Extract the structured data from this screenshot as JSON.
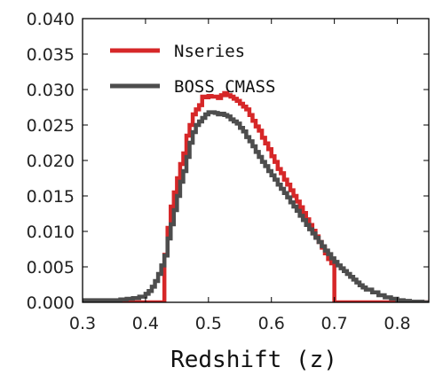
{
  "chart_data": {
    "type": "line",
    "title": "",
    "xlabel": "Redshift (z)",
    "ylabel": "",
    "xlim": [
      0.3,
      0.85
    ],
    "ylim": [
      0.0,
      0.04
    ],
    "xticks": [
      "0.3",
      "0.4",
      "0.5",
      "0.6",
      "0.7",
      "0.8"
    ],
    "yticks": [
      "0.000",
      "0.005",
      "0.010",
      "0.015",
      "0.020",
      "0.025",
      "0.030",
      "0.035",
      "0.040"
    ],
    "grid": false,
    "legend_position": "top-left",
    "series": [
      {
        "name": "Nseries",
        "color": "#d62728",
        "step": true,
        "x": [
          0.3,
          0.43,
          0.43,
          0.435,
          0.44,
          0.445,
          0.45,
          0.455,
          0.46,
          0.465,
          0.47,
          0.475,
          0.48,
          0.485,
          0.49,
          0.495,
          0.5,
          0.505,
          0.51,
          0.515,
          0.52,
          0.525,
          0.53,
          0.535,
          0.54,
          0.545,
          0.55,
          0.555,
          0.56,
          0.565,
          0.57,
          0.575,
          0.58,
          0.585,
          0.59,
          0.595,
          0.6,
          0.605,
          0.61,
          0.615,
          0.62,
          0.625,
          0.63,
          0.635,
          0.64,
          0.645,
          0.65,
          0.655,
          0.66,
          0.665,
          0.67,
          0.675,
          0.68,
          0.685,
          0.69,
          0.695,
          0.7,
          0.7,
          0.85
        ],
        "y": [
          0.0,
          0.0,
          0.0067,
          0.0105,
          0.0135,
          0.0155,
          0.0175,
          0.0195,
          0.021,
          0.0235,
          0.025,
          0.0265,
          0.0272,
          0.0278,
          0.029,
          0.0289,
          0.0291,
          0.029,
          0.029,
          0.0288,
          0.0292,
          0.0295,
          0.0292,
          0.029,
          0.0287,
          0.0284,
          0.028,
          0.0276,
          0.0272,
          0.0264,
          0.0256,
          0.0248,
          0.0242,
          0.0232,
          0.0224,
          0.0216,
          0.0206,
          0.0198,
          0.0188,
          0.0182,
          0.0173,
          0.0166,
          0.0158,
          0.015,
          0.0142,
          0.0134,
          0.0126,
          0.0117,
          0.0109,
          0.0101,
          0.0093,
          0.0085,
          0.0077,
          0.0069,
          0.0061,
          0.0055,
          0.005,
          0.0,
          0.0
        ]
      },
      {
        "name": "BOSS CMASS",
        "color": "#4d4d4d",
        "step": true,
        "x": [
          0.3,
          0.32,
          0.34,
          0.36,
          0.37,
          0.38,
          0.39,
          0.4,
          0.405,
          0.41,
          0.415,
          0.42,
          0.425,
          0.43,
          0.435,
          0.44,
          0.445,
          0.45,
          0.455,
          0.46,
          0.465,
          0.47,
          0.475,
          0.48,
          0.485,
          0.49,
          0.495,
          0.5,
          0.505,
          0.51,
          0.515,
          0.52,
          0.525,
          0.53,
          0.535,
          0.54,
          0.545,
          0.55,
          0.555,
          0.56,
          0.565,
          0.57,
          0.575,
          0.58,
          0.585,
          0.59,
          0.595,
          0.6,
          0.605,
          0.61,
          0.615,
          0.62,
          0.625,
          0.63,
          0.635,
          0.64,
          0.645,
          0.65,
          0.655,
          0.66,
          0.665,
          0.67,
          0.675,
          0.68,
          0.685,
          0.69,
          0.695,
          0.7,
          0.705,
          0.71,
          0.715,
          0.72,
          0.725,
          0.73,
          0.735,
          0.74,
          0.745,
          0.75,
          0.76,
          0.77,
          0.78,
          0.79,
          0.8,
          0.81,
          0.82,
          0.83,
          0.84,
          0.85
        ],
        "y": [
          0.0003,
          0.0003,
          0.0003,
          0.0004,
          0.0005,
          0.0006,
          0.0008,
          0.0012,
          0.0016,
          0.0022,
          0.003,
          0.004,
          0.0052,
          0.0066,
          0.009,
          0.011,
          0.013,
          0.015,
          0.017,
          0.0185,
          0.0205,
          0.0225,
          0.024,
          0.025,
          0.0255,
          0.026,
          0.0265,
          0.0268,
          0.0268,
          0.0267,
          0.0265,
          0.0266,
          0.0264,
          0.0262,
          0.0258,
          0.0255,
          0.0252,
          0.0246,
          0.0241,
          0.0233,
          0.0227,
          0.022,
          0.0212,
          0.0205,
          0.0198,
          0.0192,
          0.0185,
          0.0179,
          0.0173,
          0.0166,
          0.016,
          0.0154,
          0.0148,
          0.0141,
          0.0135,
          0.0129,
          0.0122,
          0.0116,
          0.0109,
          0.0103,
          0.0097,
          0.0091,
          0.0085,
          0.0079,
          0.0073,
          0.0068,
          0.0062,
          0.0057,
          0.0052,
          0.0048,
          0.0044,
          0.004,
          0.0036,
          0.0032,
          0.0028,
          0.0024,
          0.0021,
          0.0018,
          0.0014,
          0.001,
          0.0007,
          0.0005,
          0.0003,
          0.0002,
          0.0001,
          0.0001,
          0.0,
          0.0
        ]
      }
    ]
  }
}
